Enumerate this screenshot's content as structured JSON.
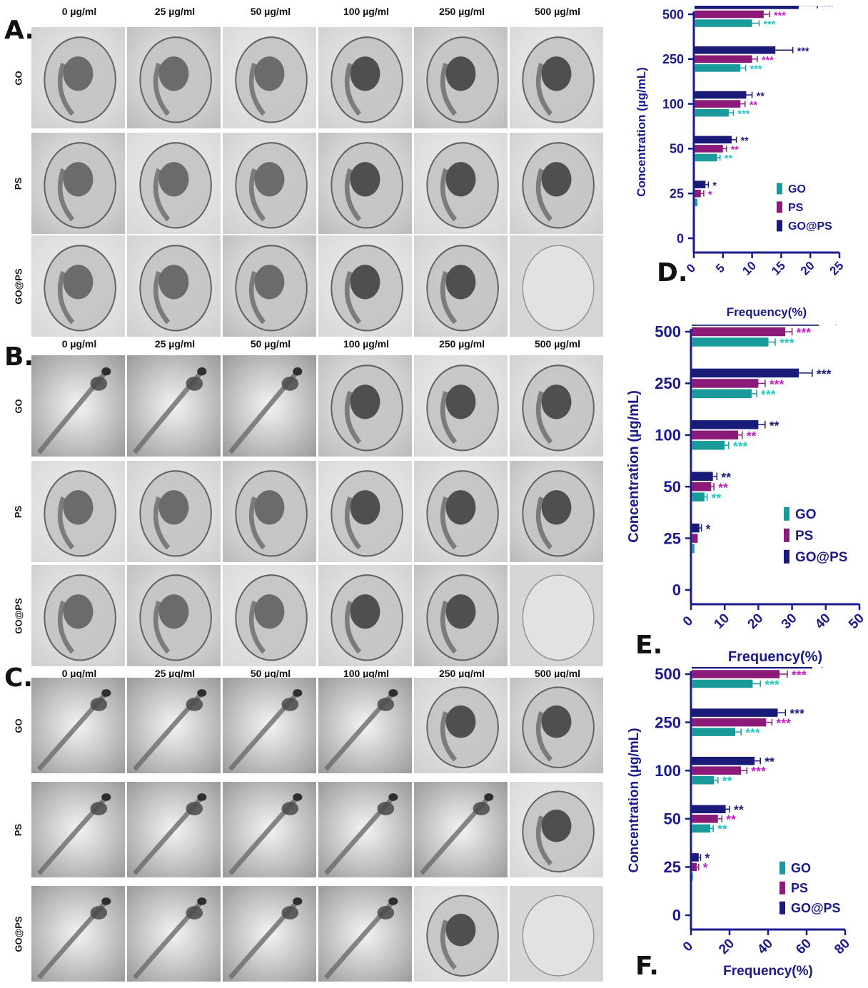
{
  "panels": {
    "A": "A.",
    "B": "B.",
    "C": "C.",
    "D": "D.",
    "E": "E.",
    "F": "F."
  },
  "image_grids": [
    {
      "panel": "A",
      "columns": [
        "0 µg/ml",
        "25 µg/ml",
        "50 µg/ml",
        "100 µg/ml",
        "250 µg/ml",
        "500 µg/ml"
      ],
      "rows": [
        "GO",
        "PS",
        "GO@PS"
      ],
      "stage": [
        [
          "egg",
          "egg",
          "egg",
          "egg",
          "egg",
          "egg"
        ],
        [
          "egg",
          "egg",
          "egg",
          "egg",
          "egg",
          "egg"
        ],
        [
          "egg",
          "egg",
          "egg",
          "egg",
          "egg",
          "empty"
        ]
      ]
    },
    {
      "panel": "B",
      "columns": [
        "0 µg/ml",
        "25 µg/ml",
        "50 µg/ml",
        "100 µg/ml",
        "250 µg/ml",
        "500 µg/ml"
      ],
      "rows": [
        "GO",
        "PS",
        "GO@PS"
      ],
      "stage": [
        [
          "larva",
          "larva",
          "larva",
          "egg",
          "egg",
          "egg"
        ],
        [
          "egg",
          "egg",
          "egg",
          "egg",
          "egg",
          "egg"
        ],
        [
          "egg",
          "egg",
          "egg",
          "egg",
          "egg",
          "empty"
        ]
      ]
    },
    {
      "panel": "C",
      "columns": [
        "0 µg/ml",
        "25 µg/ml",
        "50 µg/ml",
        "100 µg/ml",
        "250 µg/ml",
        "500 µg/ml"
      ],
      "rows": [
        "GO",
        "PS",
        "GO@PS"
      ],
      "stage": [
        [
          "larva",
          "larva",
          "larva",
          "larva",
          "egg",
          "egg"
        ],
        [
          "larva",
          "larva",
          "larva",
          "larva",
          "larva",
          "egg"
        ],
        [
          "larva",
          "larva",
          "larva",
          "larva",
          "egg",
          "empty"
        ]
      ]
    }
  ],
  "colors": {
    "GO": "#1a9a9a",
    "PS": "#8b1a78",
    "GO@PS": "#1a1a78",
    "axis": "#1a1a8c"
  },
  "chart_data": [
    {
      "panel": "D",
      "type": "bar",
      "orientation": "horizontal",
      "categories": [
        "0",
        "25",
        "50",
        "100",
        "250",
        "500"
      ],
      "series": [
        {
          "name": "GO",
          "values": [
            0,
            0.6,
            4,
            6,
            8,
            10
          ],
          "errors": [
            0,
            0,
            0.5,
            0.8,
            0.9,
            1.2
          ],
          "sig": [
            "",
            "",
            "**",
            "***",
            "***",
            "***"
          ]
        },
        {
          "name": "PS",
          "values": [
            0,
            1.2,
            5,
            8,
            10,
            12
          ],
          "errors": [
            0,
            0.5,
            0.6,
            0.8,
            0.9,
            1.0
          ],
          "sig": [
            "",
            "*",
            "**",
            "**",
            "***",
            "***"
          ]
        },
        {
          "name": "GO@PS",
          "values": [
            0,
            2,
            6.5,
            9,
            14,
            18
          ],
          "errors": [
            0,
            0.5,
            0.8,
            1.0,
            3,
            3.2
          ],
          "sig": [
            "",
            "*",
            "**",
            "**",
            "***",
            "***"
          ]
        }
      ],
      "xlabel": "Frequency(%)",
      "ylabel": "Concentration (µg/mL)",
      "xticks": [
        0,
        5,
        10,
        15,
        20,
        25
      ],
      "xlim": [
        0,
        25
      ],
      "legend": "bottom-right"
    },
    {
      "panel": "E",
      "type": "bar",
      "orientation": "horizontal",
      "categories": [
        "0",
        "25",
        "50",
        "100",
        "250",
        "500"
      ],
      "series": [
        {
          "name": "GO",
          "values": [
            0,
            1,
            4,
            10,
            18,
            23
          ],
          "errors": [
            0,
            0,
            0.8,
            1.2,
            1.5,
            2
          ],
          "sig": [
            "",
            "",
            "**",
            "***",
            "***",
            "***"
          ]
        },
        {
          "name": "PS",
          "values": [
            0,
            2,
            6,
            14,
            20,
            28
          ],
          "errors": [
            0,
            0,
            0.8,
            1.2,
            2,
            2
          ],
          "sig": [
            "",
            "",
            "**",
            "**",
            "***",
            "***"
          ]
        },
        {
          "name": "GO@PS",
          "values": [
            0,
            2.5,
            6.5,
            20,
            32,
            38
          ],
          "errors": [
            0,
            0.6,
            1.2,
            2,
            4,
            5
          ],
          "sig": [
            "",
            "*",
            "**",
            "**",
            "***",
            "***"
          ]
        }
      ],
      "xlabel": "Frequency(%)",
      "ylabel": "Concentration (µg/mL)",
      "xticks": [
        0,
        10,
        20,
        30,
        40,
        50
      ],
      "xlim": [
        0,
        50
      ],
      "legend": "bottom-right"
    },
    {
      "panel": "F",
      "type": "bar",
      "orientation": "horizontal",
      "categories": [
        "0",
        "25",
        "50",
        "100",
        "250",
        "500"
      ],
      "series": [
        {
          "name": "GO",
          "values": [
            0,
            1,
            10,
            12,
            23,
            32
          ],
          "errors": [
            0,
            0,
            1.5,
            2,
            3,
            4
          ],
          "sig": [
            "",
            "",
            "**",
            "**",
            "***",
            "***"
          ]
        },
        {
          "name": "PS",
          "values": [
            0,
            3,
            14,
            26,
            39,
            46
          ],
          "errors": [
            0,
            1,
            2,
            3,
            3,
            4
          ],
          "sig": [
            "",
            "*",
            "**",
            "***",
            "***",
            "***"
          ]
        },
        {
          "name": "GO@PS",
          "values": [
            0,
            4,
            18,
            33,
            45,
            63
          ],
          "errors": [
            0,
            1,
            2,
            3,
            4,
            5
          ],
          "sig": [
            "",
            "*",
            "**",
            "**",
            "***",
            "***"
          ]
        }
      ],
      "xlabel": "Frequency(%)",
      "ylabel": "Concentration (µg/mL)",
      "xticks": [
        0,
        20,
        40,
        60,
        80
      ],
      "xlim": [
        0,
        80
      ],
      "legend": "bottom-right"
    }
  ]
}
